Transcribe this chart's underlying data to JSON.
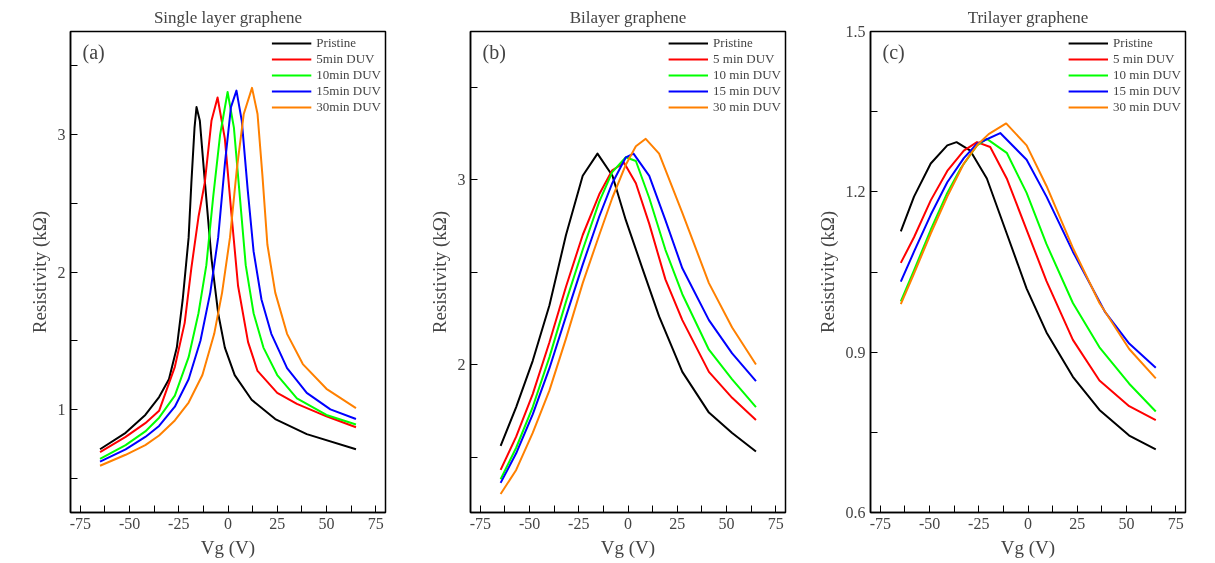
{
  "chart_data": [
    {
      "type": "line",
      "title": "Single layer graphene",
      "xlabel": "Vg (V)",
      "ylabel": "Resistivity (kΩ)",
      "annotations": [
        "(a)"
      ],
      "legend": "top right",
      "grid": false,
      "line_style": "solid",
      "marker": "none",
      "xlim": [
        -80,
        80
      ],
      "ylim": [
        0.25,
        3.75
      ],
      "xticks": [
        -75,
        {
          "value": -62.5,
          "label": null
        },
        -50,
        {
          "value": -37.5,
          "label": null
        },
        -25,
        {
          "value": -12.5,
          "label": null
        },
        0,
        {
          "value": 12.5,
          "label": null
        },
        25,
        {
          "value": 37.5,
          "label": null
        },
        50,
        {
          "value": 62.5,
          "label": null
        },
        75
      ],
      "yticks": [
        {
          "value": 0.5,
          "label": null
        },
        1,
        {
          "value": 1.5,
          "label": null
        },
        2,
        {
          "value": 2.5,
          "label": null
        },
        3,
        {
          "value": 3.5,
          "label": null
        }
      ],
      "series": [
        {
          "name": "Pristine",
          "color": "#000000",
          "x": [
            -65,
            -52,
            -42,
            -35,
            -30,
            -26,
            -23,
            -20,
            -18.6,
            -17,
            -16,
            -14.3,
            -12,
            -8.4,
            -5,
            -1.6,
            3.4,
            12,
            24,
            40,
            65
          ],
          "values": [
            0.71,
            0.83,
            0.96,
            1.09,
            1.22,
            1.45,
            1.8,
            2.25,
            2.65,
            3.05,
            3.2,
            3.1,
            2.7,
            2.1,
            1.7,
            1.45,
            1.25,
            1.07,
            0.93,
            0.82,
            0.71
          ]
        },
        {
          "name": "5min DUV",
          "color": "#ff0000",
          "x": [
            -65,
            -52,
            -42,
            -35,
            -27,
            -22,
            -18.6,
            -15,
            -11.8,
            -8.4,
            -5.3,
            -1.6,
            1.7,
            5.1,
            10.2,
            15,
            25,
            35,
            50,
            65
          ],
          "values": [
            0.69,
            0.8,
            0.9,
            0.99,
            1.31,
            1.63,
            2.03,
            2.4,
            2.65,
            3.1,
            3.27,
            2.97,
            2.43,
            1.9,
            1.49,
            1.28,
            1.12,
            1.04,
            0.95,
            0.87
          ]
        },
        {
          "name": "10min DUV",
          "color": "#00ff00",
          "x": [
            -65,
            -52,
            -42,
            -35,
            -27,
            -20,
            -15,
            -11,
            -7.5,
            -4,
            -0.2,
            3,
            6,
            9,
            13,
            18,
            25,
            35,
            50,
            65
          ],
          "values": [
            0.64,
            0.74,
            0.84,
            0.94,
            1.1,
            1.38,
            1.7,
            2.05,
            2.55,
            3.0,
            3.31,
            3.05,
            2.55,
            2.05,
            1.7,
            1.45,
            1.25,
            1.08,
            0.96,
            0.89
          ]
        },
        {
          "name": "15min DUV",
          "color": "#0000ff",
          "x": [
            -65,
            -52,
            -42,
            -35,
            -27,
            -20,
            -14,
            -9,
            -5,
            -1.5,
            1.5,
            4.3,
            7,
            10,
            13,
            17,
            22,
            30,
            40,
            52,
            65
          ],
          "values": [
            0.62,
            0.71,
            0.8,
            0.88,
            1.02,
            1.22,
            1.5,
            1.85,
            2.25,
            2.8,
            3.2,
            3.32,
            3.1,
            2.6,
            2.15,
            1.8,
            1.55,
            1.3,
            1.12,
            1.0,
            0.93
          ]
        },
        {
          "name": "30min DUV",
          "color": "#ff8000",
          "x": [
            -65,
            -52,
            -42,
            -35,
            -27,
            -20,
            -13,
            -7,
            -3,
            1,
            4.5,
            8,
            12.2,
            15,
            17.5,
            20,
            24,
            30,
            38,
            50,
            65
          ],
          "values": [
            0.59,
            0.67,
            0.74,
            0.81,
            0.92,
            1.05,
            1.25,
            1.55,
            1.85,
            2.25,
            2.75,
            3.15,
            3.34,
            3.15,
            2.7,
            2.2,
            1.85,
            1.55,
            1.33,
            1.15,
            1.01
          ]
        }
      ]
    },
    {
      "type": "line",
      "title": "Bilayer graphene",
      "xlabel": "Vg (V)",
      "ylabel": "Resistivity (kΩ)",
      "annotations": [
        "(b)"
      ],
      "legend": "top right",
      "grid": false,
      "line_style": "solid",
      "marker": "none",
      "xlim": [
        -80,
        80
      ],
      "ylim": [
        1.2,
        3.8
      ],
      "xticks": [
        -75,
        {
          "value": -62.5,
          "label": null
        },
        -50,
        {
          "value": -37.5,
          "label": null
        },
        -25,
        {
          "value": -12.5,
          "label": null
        },
        0,
        {
          "value": 12.5,
          "label": null
        },
        25,
        {
          "value": 37.5,
          "label": null
        },
        50,
        {
          "value": 62.5,
          "label": null
        },
        75
      ],
      "yticks": [
        {
          "value": 1.5,
          "label": null
        },
        2,
        {
          "value": 2.5,
          "label": null
        },
        3,
        {
          "value": 3.5,
          "label": null
        }
      ],
      "series": [
        {
          "name": "Pristine",
          "color": "#000000",
          "x": [
            -64.7,
            -56.8,
            -48.4,
            -39.9,
            -31.5,
            -23,
            -15.5,
            -7.9,
            -1.1,
            7.3,
            15.8,
            27.6,
            41.1,
            52.9,
            65
          ],
          "values": [
            1.56,
            1.77,
            2.02,
            2.32,
            2.7,
            3.02,
            3.14,
            3.02,
            2.78,
            2.52,
            2.26,
            1.96,
            1.74,
            1.63,
            1.53
          ]
        },
        {
          "name": "5 min DUV",
          "color": "#ff0000",
          "x": [
            -64.7,
            -56.8,
            -48.4,
            -39.9,
            -31.5,
            -23,
            -14.6,
            -8,
            -2,
            4,
            10.8,
            19,
            27.6,
            41.1,
            52.9,
            65
          ],
          "values": [
            1.43,
            1.61,
            1.84,
            2.12,
            2.42,
            2.7,
            2.92,
            3.05,
            3.09,
            2.98,
            2.76,
            2.46,
            2.24,
            1.96,
            1.82,
            1.7
          ]
        },
        {
          "name": "10 min DUV",
          "color": "#00ff00",
          "x": [
            -64.7,
            -56.8,
            -48.4,
            -39.9,
            -31.5,
            -23,
            -14.6,
            -8,
            -1.1,
            4,
            10.8,
            19,
            27.6,
            41.1,
            52.9,
            65
          ],
          "values": [
            1.38,
            1.55,
            1.77,
            2.04,
            2.34,
            2.62,
            2.88,
            3.04,
            3.12,
            3.1,
            2.9,
            2.62,
            2.38,
            2.08,
            1.92,
            1.77
          ]
        },
        {
          "name": "15 min DUV",
          "color": "#0000ff",
          "x": [
            -64.7,
            -56.8,
            -48.4,
            -39.9,
            -31.5,
            -23,
            -14.6,
            -8,
            -1.1,
            2.8,
            10.8,
            19,
            27.6,
            41.1,
            52.9,
            65
          ],
          "values": [
            1.36,
            1.52,
            1.73,
            1.98,
            2.26,
            2.54,
            2.8,
            2.98,
            3.12,
            3.14,
            3.02,
            2.78,
            2.52,
            2.24,
            2.06,
            1.91
          ]
        },
        {
          "name": "30 min DUV",
          "color": "#ff8000",
          "x": [
            -64.7,
            -56.8,
            -48.4,
            -39.9,
            -31.5,
            -23,
            -14.6,
            -8,
            -1.1,
            4,
            9,
            15.8,
            27.6,
            41.1,
            52.9,
            65
          ],
          "values": [
            1.3,
            1.43,
            1.63,
            1.86,
            2.14,
            2.44,
            2.7,
            2.9,
            3.08,
            3.18,
            3.22,
            3.14,
            2.82,
            2.44,
            2.2,
            2.0
          ]
        }
      ]
    },
    {
      "type": "line",
      "title": "Trilayer graphene",
      "xlabel": "Vg (V)",
      "ylabel": "Resistivity (kΩ)",
      "annotations": [
        "(c)"
      ],
      "legend": "top right",
      "grid": false,
      "line_style": "solid",
      "marker": "none",
      "xlim": [
        -80,
        80
      ],
      "ylim": [
        0.6,
        1.5
      ],
      "xticks": [
        -75,
        {
          "value": -62.5,
          "label": null
        },
        -50,
        {
          "value": -37.5,
          "label": null
        },
        -25,
        {
          "value": -12.5,
          "label": null
        },
        0,
        {
          "value": 12.5,
          "label": null
        },
        25,
        {
          "value": 37.5,
          "label": null
        },
        50,
        {
          "value": 62.5,
          "label": null
        },
        75
      ],
      "yticks": [
        {
          "value": 0.6,
          "label": "0.6"
        },
        {
          "value": 0.75,
          "label": null
        },
        {
          "value": 0.9,
          "label": "0.9"
        },
        {
          "value": 1.05,
          "label": null
        },
        {
          "value": 1.2,
          "label": "1.2"
        },
        {
          "value": 1.35,
          "label": null
        },
        {
          "value": 1.5,
          "label": "1.5"
        }
      ],
      "series": [
        {
          "name": "Pristine",
          "color": "#000000",
          "x": [
            -64.6,
            -57.9,
            -49.4,
            -41,
            -36.3,
            -29.3,
            -20.9,
            -10.8,
            -0.7,
            9.4,
            22.8,
            36.3,
            51.4,
            64.9
          ],
          "values": [
            1.126,
            1.191,
            1.253,
            1.287,
            1.293,
            1.277,
            1.225,
            1.122,
            1.019,
            0.937,
            0.854,
            0.792,
            0.744,
            0.718
          ]
        },
        {
          "name": "5 min DUV",
          "color": "#ff0000",
          "x": [
            -64.6,
            -57.9,
            -49.4,
            -41,
            -32.6,
            -25.9,
            -19.2,
            -10.8,
            -0.7,
            9.4,
            22.8,
            36.3,
            51.4,
            64.9
          ],
          "values": [
            1.067,
            1.115,
            1.184,
            1.239,
            1.277,
            1.293,
            1.284,
            1.225,
            1.129,
            1.033,
            0.923,
            0.847,
            0.799,
            0.773
          ]
        },
        {
          "name": "10 min DUV",
          "color": "#00ff00",
          "x": [
            -64.6,
            -57.9,
            -49.4,
            -41,
            -34,
            -25.9,
            -20.9,
            -10.8,
            -0.7,
            9.4,
            22.8,
            36.3,
            51.4,
            64.9
          ],
          "values": [
            0.995,
            1.053,
            1.129,
            1.198,
            1.245,
            1.287,
            1.299,
            1.273,
            1.198,
            1.102,
            0.992,
            0.909,
            0.841,
            0.789
          ]
        },
        {
          "name": "15 min DUV",
          "color": "#0000ff",
          "x": [
            -64.6,
            -57.9,
            -49.4,
            -41,
            -32.6,
            -25.9,
            -14.1,
            -0.7,
            9.4,
            22.8,
            39,
            51.4,
            64.9
          ],
          "values": [
            1.032,
            1.088,
            1.157,
            1.218,
            1.263,
            1.29,
            1.31,
            1.26,
            1.191,
            1.088,
            0.976,
            0.916,
            0.871
          ]
        },
        {
          "name": "30 min DUV",
          "color": "#ff8000",
          "x": [
            -64.6,
            -57.9,
            -49.4,
            -41,
            -32.6,
            -25.9,
            -20,
            -11.1,
            -0.7,
            9.4,
            22.8,
            36.3,
            51.4,
            64.9
          ],
          "values": [
            0.99,
            1.047,
            1.122,
            1.191,
            1.253,
            1.287,
            1.308,
            1.328,
            1.287,
            1.211,
            1.095,
            0.992,
            0.906,
            0.851
          ]
        }
      ]
    }
  ]
}
